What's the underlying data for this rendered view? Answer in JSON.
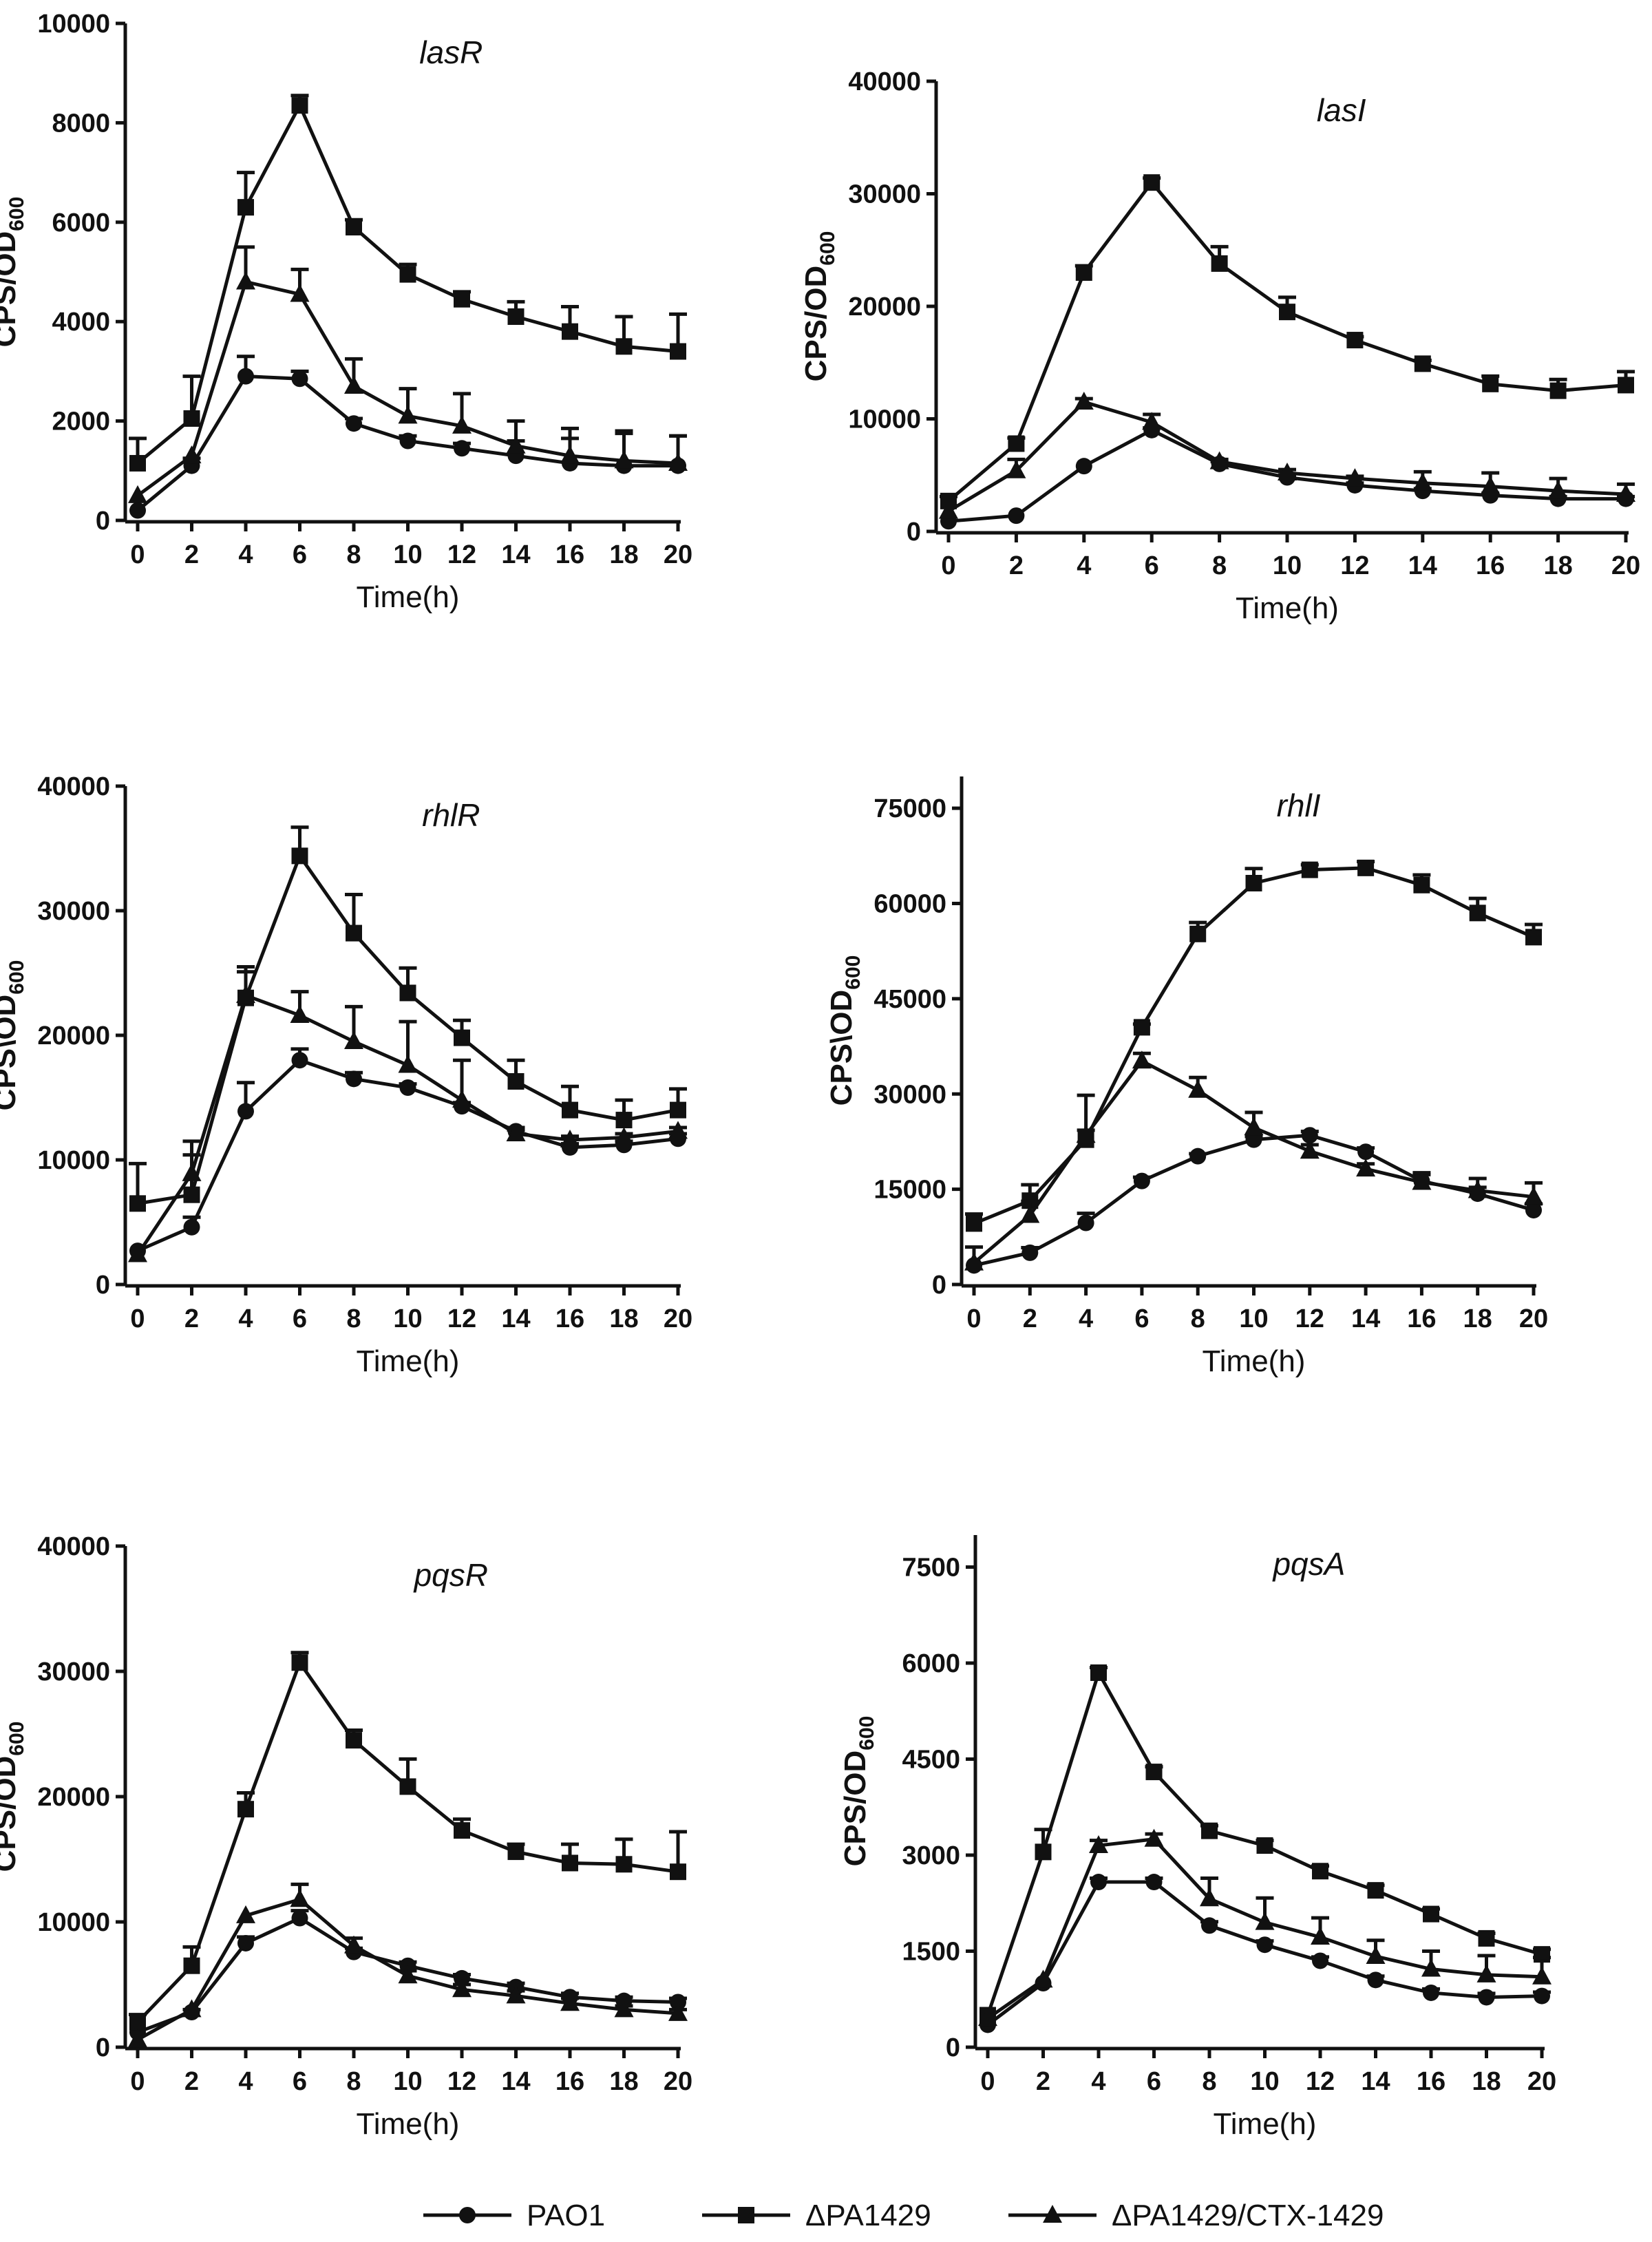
{
  "colors": {
    "ink": "#111111",
    "background": "#ffffff"
  },
  "legend": [
    {
      "name": "PAO1",
      "marker": "circle"
    },
    {
      "name": "ΔPA1429",
      "marker": "square"
    },
    {
      "name": "ΔPA1429/CTX-1429",
      "marker": "triangle"
    }
  ],
  "chart_data": [
    {
      "type": "line",
      "title": "lasR",
      "xlabel": "Time(h)",
      "ylabel": "CPS/OD",
      "ylabel_sub": "600",
      "x": [
        0,
        2,
        4,
        6,
        8,
        10,
        12,
        14,
        16,
        18,
        20
      ],
      "xticks": [
        "0",
        "2",
        "4",
        "6",
        "8",
        "10",
        "12",
        "14",
        "16",
        "18",
        "20"
      ],
      "ylim": [
        0,
        10000
      ],
      "yticks": [
        "0",
        "2000",
        "4000",
        "6000",
        "8000",
        "10000"
      ],
      "series": [
        {
          "name": "PAO1",
          "values": [
            200,
            1100,
            2900,
            2850,
            1950,
            1600,
            1450,
            1300,
            1150,
            1100,
            1100
          ],
          "errors": [
            0,
            150,
            400,
            150,
            100,
            100,
            100,
            300,
            500,
            700,
            600
          ]
        },
        {
          "name": "ΔPA1429",
          "values": [
            1150,
            2050,
            6300,
            8350,
            5900,
            4950,
            4450,
            4100,
            3800,
            3500,
            3400
          ],
          "errors": [
            500,
            850,
            700,
            200,
            150,
            200,
            150,
            300,
            500,
            600,
            750
          ]
        },
        {
          "name": "ΔPA1429/CTX-1429",
          "values": [
            500,
            1300,
            4800,
            4550,
            2700,
            2100,
            1900,
            1500,
            1300,
            1200,
            1150
          ],
          "errors": [
            0,
            0,
            700,
            500,
            550,
            550,
            650,
            500,
            550,
            550,
            550
          ]
        }
      ]
    },
    {
      "type": "line",
      "title": "lasI",
      "xlabel": "Time(h)",
      "ylabel": "CPS/OD",
      "ylabel_sub": "600",
      "x": [
        0,
        2,
        4,
        6,
        8,
        10,
        12,
        14,
        16,
        18,
        20
      ],
      "xticks": [
        "0",
        "2",
        "4",
        "6",
        "8",
        "10",
        "12",
        "14",
        "16",
        "18",
        "20"
      ],
      "ylim": [
        0,
        40000
      ],
      "yticks": [
        "0",
        "10000",
        "20000",
        "30000",
        "40000"
      ],
      "series": [
        {
          "name": "PAO1",
          "values": [
            900,
            1400,
            5800,
            9000,
            6000,
            4800,
            4100,
            3600,
            3200,
            2900,
            2900
          ],
          "errors": [
            0,
            0,
            0,
            200,
            200,
            200,
            200,
            200,
            200,
            200,
            200
          ]
        },
        {
          "name": "ΔPA1429",
          "values": [
            2700,
            7800,
            23000,
            31000,
            23800,
            19500,
            17000,
            14900,
            13100,
            12500,
            13000
          ],
          "errors": [
            400,
            500,
            600,
            400,
            1500,
            1300,
            300,
            300,
            700,
            1000,
            1200
          ]
        },
        {
          "name": "ΔPA1429/CTX-1429",
          "values": [
            1800,
            5400,
            11500,
            9700,
            6200,
            5200,
            4700,
            4300,
            4000,
            3600,
            3300
          ],
          "errors": [
            0,
            1000,
            300,
            700,
            200,
            300,
            200,
            1000,
            1200,
            1100,
            900
          ]
        }
      ]
    },
    {
      "type": "line",
      "title": "rhlR",
      "xlabel": "Time(h)",
      "ylabel": "CPS\\OD",
      "ylabel_sub": "600",
      "x": [
        0,
        2,
        4,
        6,
        8,
        10,
        12,
        14,
        16,
        18,
        20
      ],
      "xticks": [
        "0",
        "2",
        "4",
        "6",
        "8",
        "10",
        "12",
        "14",
        "16",
        "18",
        "20"
      ],
      "ylim": [
        0,
        40000
      ],
      "yticks": [
        "0",
        "10000",
        "20000",
        "30000",
        "40000"
      ],
      "series": [
        {
          "name": "PAO1",
          "values": [
            2700,
            4600,
            13900,
            18000,
            16500,
            15800,
            14300,
            12300,
            11000,
            11200,
            11700
          ],
          "errors": [
            0,
            800,
            2300,
            900,
            500,
            300,
            300,
            300,
            300,
            300,
            400
          ]
        },
        {
          "name": "ΔPA1429",
          "values": [
            6500,
            7200,
            23000,
            34400,
            28200,
            23400,
            19800,
            16300,
            14000,
            13200,
            14000
          ],
          "errors": [
            3200,
            3200,
            2500,
            2300,
            3100,
            2000,
            1400,
            1700,
            1900,
            1600,
            1700
          ]
        },
        {
          "name": "ΔPA1429/CTX-1429",
          "values": [
            2400,
            8900,
            23200,
            21600,
            19500,
            17600,
            14800,
            12100,
            11600,
            11800,
            12300
          ],
          "errors": [
            0,
            2600,
            1900,
            1900,
            2800,
            3500,
            3200,
            300,
            300,
            300,
            300
          ]
        }
      ]
    },
    {
      "type": "line",
      "title": "rhlI",
      "xlabel": "Time(h)",
      "ylabel": "CPS\\OD",
      "ylabel_sub": "600",
      "x": [
        0,
        2,
        4,
        6,
        8,
        10,
        12,
        14,
        16,
        18,
        20
      ],
      "xticks": [
        "0",
        "2",
        "4",
        "6",
        "8",
        "10",
        "12",
        "14",
        "16",
        "18",
        "20"
      ],
      "ylim": [
        0,
        80000
      ],
      "yticks": [
        "0",
        "15000",
        "30000",
        "45000",
        "60000",
        "75000"
      ],
      "series": [
        {
          "name": "PAO1",
          "values": [
            3000,
            5000,
            9700,
            16300,
            20200,
            22800,
            23500,
            20900,
            16300,
            14300,
            11700
          ],
          "errors": [
            0,
            800,
            1500,
            600,
            400,
            500,
            600,
            600,
            1000,
            1000,
            1000
          ]
        },
        {
          "name": "ΔPA1429",
          "values": [
            9600,
            13200,
            22800,
            40500,
            55200,
            63200,
            65300,
            65600,
            62900,
            58500,
            54700
          ],
          "errors": [
            1500,
            2500,
            7000,
            500,
            1800,
            2300,
            800,
            1000,
            1600,
            2300,
            2000
          ]
        },
        {
          "name": "ΔPA1429/CTX-1429",
          "values": [
            3400,
            10900,
            23500,
            35200,
            30600,
            24700,
            21000,
            18200,
            16100,
            14800,
            13800
          ],
          "errors": [
            2500,
            2200,
            800,
            1200,
            2000,
            2400,
            1000,
            800,
            1500,
            1900,
            2200
          ]
        }
      ]
    },
    {
      "type": "line",
      "title": "pqsR",
      "xlabel": "Time(h)",
      "ylabel": "CPS/OD",
      "ylabel_sub": "600",
      "x": [
        0,
        2,
        4,
        6,
        8,
        10,
        12,
        14,
        16,
        18,
        20
      ],
      "xticks": [
        "0",
        "2",
        "4",
        "6",
        "8",
        "10",
        "12",
        "14",
        "16",
        "18",
        "20"
      ],
      "ylim": [
        0,
        40000
      ],
      "yticks": [
        "0",
        "10000",
        "20000",
        "30000",
        "40000"
      ],
      "series": [
        {
          "name": "PAO1",
          "values": [
            1200,
            2800,
            8300,
            10300,
            7600,
            6500,
            5500,
            4800,
            4000,
            3700,
            3600
          ],
          "errors": [
            0,
            200,
            500,
            600,
            300,
            300,
            300,
            300,
            300,
            300,
            300
          ]
        },
        {
          "name": "ΔPA1429",
          "values": [
            2000,
            6500,
            19000,
            30700,
            24500,
            20800,
            17300,
            15600,
            14700,
            14600,
            14000
          ],
          "errors": [
            600,
            1500,
            1300,
            800,
            800,
            2200,
            900,
            600,
            1500,
            2000,
            3200
          ]
        },
        {
          "name": "ΔPA1429/CTX-1429",
          "values": [
            600,
            3000,
            10500,
            11800,
            8100,
            5700,
            4600,
            4100,
            3500,
            3000,
            2700
          ],
          "errors": [
            0,
            0,
            0,
            1200,
            600,
            400,
            400,
            400,
            400,
            300,
            300
          ]
        }
      ]
    },
    {
      "type": "line",
      "title": "pqsA",
      "xlabel": "Time(h)",
      "ylabel": "CPS/OD",
      "ylabel_sub": "600",
      "x": [
        0,
        2,
        4,
        6,
        8,
        10,
        12,
        14,
        16,
        18,
        20
      ],
      "xticks": [
        "0",
        "2",
        "4",
        "6",
        "8",
        "10",
        "12",
        "14",
        "16",
        "18",
        "20"
      ],
      "ylim": [
        0,
        8000
      ],
      "yticks": [
        "0",
        "1500",
        "3000",
        "4500",
        "6000",
        "7500"
      ],
      "series": [
        {
          "name": "PAO1",
          "values": [
            350,
            1000,
            2580,
            2580,
            1900,
            1600,
            1350,
            1050,
            850,
            780,
            800
          ],
          "errors": [
            0,
            0,
            60,
            60,
            60,
            60,
            60,
            60,
            60,
            60,
            60
          ]
        },
        {
          "name": "ΔPA1429",
          "values": [
            500,
            3050,
            5850,
            4300,
            3380,
            3150,
            2750,
            2450,
            2080,
            1700,
            1450
          ],
          "errors": [
            0,
            350,
            80,
            80,
            80,
            80,
            80,
            80,
            80,
            80,
            80
          ]
        },
        {
          "name": "ΔPA1429/CTX-1429",
          "values": [
            450,
            1050,
            3150,
            3250,
            2320,
            1950,
            1720,
            1420,
            1220,
            1130,
            1100
          ],
          "errors": [
            0,
            0,
            80,
            80,
            320,
            380,
            300,
            250,
            280,
            300,
            300
          ]
        }
      ]
    }
  ]
}
